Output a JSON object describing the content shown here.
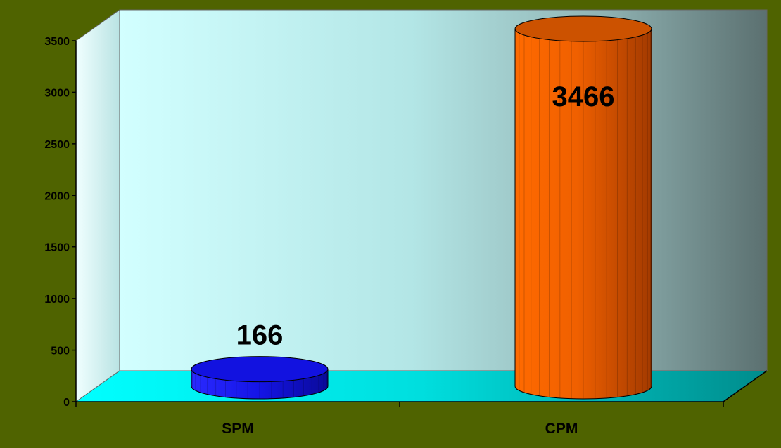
{
  "colors": {
    "background": "#4f6300",
    "wall_left": "#ccffff",
    "wall_right": "#5f7373",
    "floor": "#00cccc",
    "text": "#000000"
  },
  "chart_data": {
    "type": "bar",
    "style": "3d-cylinder",
    "title": "",
    "xlabel": "",
    "ylabel": "",
    "categories": [
      "SPM",
      "CPM"
    ],
    "values": [
      166,
      3466
    ],
    "data_labels": [
      "166",
      "3466"
    ],
    "bar_colors": [
      "#1a1aff",
      "#ff6a00"
    ],
    "ylim": [
      0,
      3500
    ],
    "yticks": [
      0,
      500,
      1000,
      1500,
      2000,
      2500,
      3000,
      3500
    ],
    "grid": false,
    "legend": "none"
  }
}
